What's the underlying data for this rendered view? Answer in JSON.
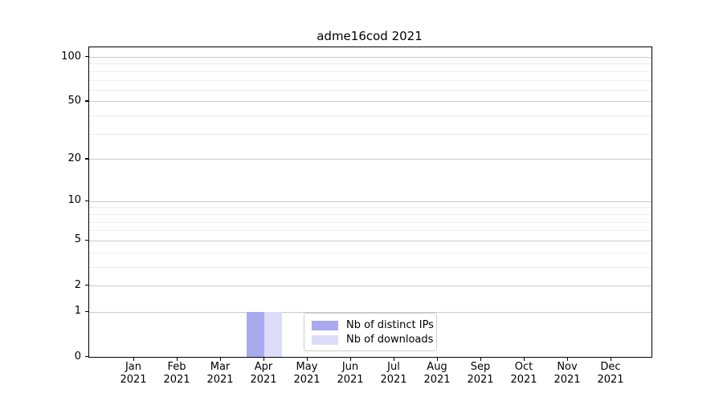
{
  "chart_data": {
    "type": "bar",
    "title": "adme16cod 2021",
    "categories": [
      {
        "month": "Jan",
        "year": "2021"
      },
      {
        "month": "Feb",
        "year": "2021"
      },
      {
        "month": "Mar",
        "year": "2021"
      },
      {
        "month": "Apr",
        "year": "2021"
      },
      {
        "month": "May",
        "year": "2021"
      },
      {
        "month": "Jun",
        "year": "2021"
      },
      {
        "month": "Jul",
        "year": "2021"
      },
      {
        "month": "Aug",
        "year": "2021"
      },
      {
        "month": "Sep",
        "year": "2021"
      },
      {
        "month": "Oct",
        "year": "2021"
      },
      {
        "month": "Nov",
        "year": "2021"
      },
      {
        "month": "Dec",
        "year": "2021"
      }
    ],
    "series": [
      {
        "name": "Nb of distinct IPs",
        "color": "#a9a9ee",
        "values": [
          0,
          0,
          0,
          1,
          0,
          0,
          0,
          0,
          0,
          0,
          0,
          0
        ]
      },
      {
        "name": "Nb of downloads",
        "color": "#dcdcf8",
        "values": [
          0,
          0,
          0,
          1,
          0,
          0,
          0,
          0,
          0,
          0,
          0,
          0
        ]
      }
    ],
    "xlabel": "",
    "ylabel": "",
    "y_axis": {
      "scale": "log1p",
      "range": [
        0,
        100
      ],
      "major_ticks": [
        0,
        1,
        2,
        5,
        10,
        20,
        50,
        100
      ],
      "minor_gridlines": [
        3,
        4,
        6,
        7,
        8,
        9,
        30,
        40,
        60,
        70,
        80,
        90
      ]
    },
    "grid": {
      "major_color": "#c9c9c9",
      "minor_color": "#ececec"
    },
    "legend": {
      "position": "inside-bottom-center"
    }
  }
}
